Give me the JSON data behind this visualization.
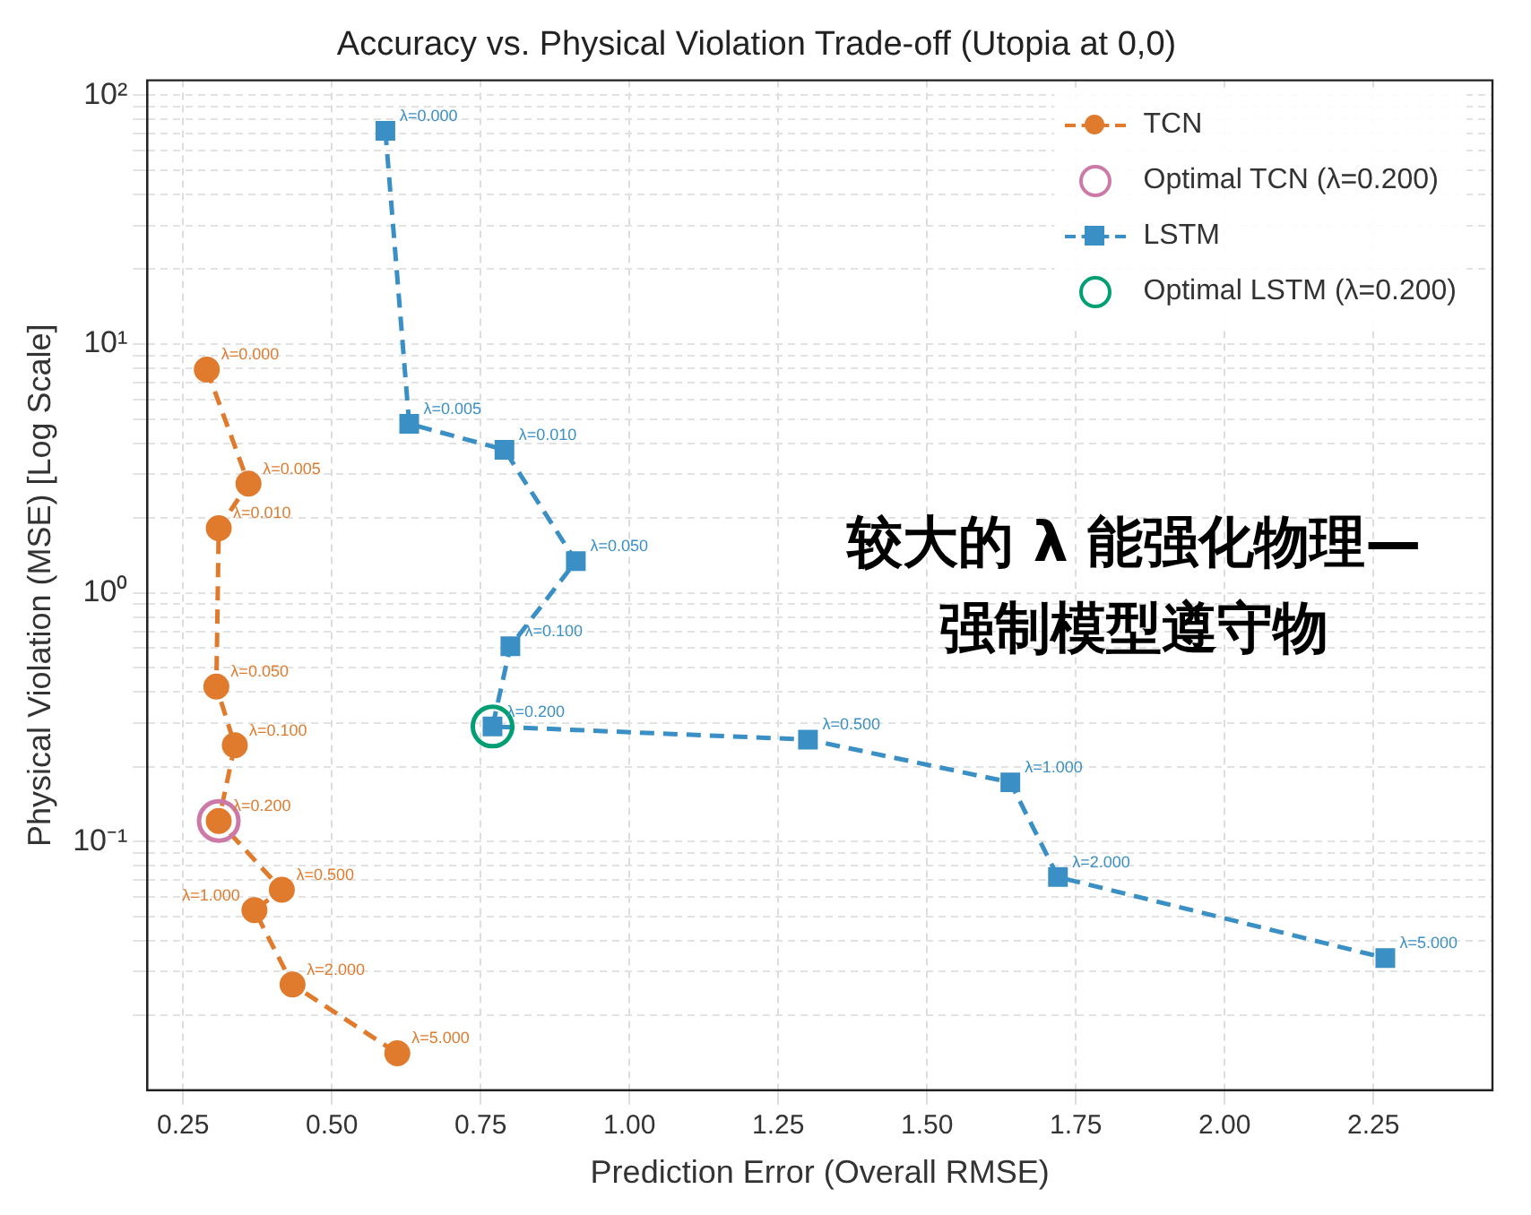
{
  "chart_data": {
    "type": "line",
    "title": "Accuracy vs. Physical Violation Trade-off (Utopia at 0,0)",
    "xlabel": "Prediction Error (Overall RMSE)",
    "ylabel": "Physical Violation (MSE) [Log Scale]",
    "series": [
      {
        "name": "TCN",
        "color": "#e07b2e",
        "marker": "circle",
        "line_style": "dashed",
        "x": [
          0.29,
          0.36,
          0.31,
          0.306,
          0.337,
          0.31,
          0.416,
          0.37,
          0.434,
          0.61
        ],
        "values": [
          7.9,
          2.75,
          1.82,
          0.42,
          0.244,
          0.121,
          0.064,
          0.053,
          0.0266,
          0.0141
        ]
      },
      {
        "name": "Optimal TCN (λ=0.200)",
        "type": "scatter",
        "color": "#cc79a7",
        "marker": "circle",
        "x": [
          0.31
        ],
        "values": [
          0.121
        ]
      },
      {
        "name": "LSTM",
        "color": "#3a8fc4",
        "marker": "square",
        "line_style": "dashed",
        "x": [
          0.59,
          0.63,
          0.79,
          0.91,
          0.8,
          0.77,
          1.3,
          1.64,
          1.72,
          2.27
        ],
        "values": [
          72,
          4.78,
          3.76,
          1.34,
          0.61,
          0.29,
          0.257,
          0.173,
          0.072,
          0.034
        ]
      },
      {
        "name": "Optimal LSTM (λ=0.200)",
        "type": "scatter",
        "color": "#009e73",
        "marker": "circle",
        "x": [
          0.77
        ],
        "values": [
          0.29
        ]
      }
    ],
    "xlim": [
      0.19,
      2.45
    ],
    "ylim": [
      0.01,
      115
    ],
    "log": "y",
    "xticks": [
      {
        "value": 0.25,
        "label": "0.25"
      },
      {
        "value": 0.5,
        "label": "0.50"
      },
      {
        "value": 0.75,
        "label": "0.75"
      },
      {
        "value": 1,
        "label": "1.00"
      },
      {
        "value": 1.25,
        "label": "1.25"
      },
      {
        "value": 1.5,
        "label": "1.50"
      },
      {
        "value": 1.75,
        "label": "1.75"
      },
      {
        "value": 2,
        "label": "2.00"
      },
      {
        "value": 2.25,
        "label": "2.25"
      }
    ],
    "yticks": [
      {
        "value": 0.02,
        "label": null
      },
      {
        "value": 0.03,
        "label": null
      },
      {
        "value": 0.04,
        "label": null
      },
      {
        "value": 0.05,
        "label": null
      },
      {
        "value": 0.06,
        "label": null
      },
      {
        "value": 0.07,
        "label": null
      },
      {
        "value": 0.08,
        "label": null
      },
      {
        "value": 0.09,
        "label": null
      },
      {
        "value": 0.1,
        "label": "10⁻¹"
      },
      {
        "value": 0.2,
        "label": null
      },
      {
        "value": 0.3,
        "label": null
      },
      {
        "value": 0.4,
        "label": null
      },
      {
        "value": 0.5,
        "label": null
      },
      {
        "value": 0.6,
        "label": null
      },
      {
        "value": 0.7,
        "label": null
      },
      {
        "value": 0.8,
        "label": null
      },
      {
        "value": 0.9,
        "label": null
      },
      {
        "value": 1,
        "label": "10⁰"
      },
      {
        "value": 2,
        "label": null
      },
      {
        "value": 3,
        "label": null
      },
      {
        "value": 4,
        "label": null
      },
      {
        "value": 5,
        "label": null
      },
      {
        "value": 6,
        "label": null
      },
      {
        "value": 7,
        "label": null
      },
      {
        "value": 8,
        "label": null
      },
      {
        "value": 9,
        "label": null
      },
      {
        "value": 10,
        "label": "10¹"
      },
      {
        "value": 20,
        "label": null
      },
      {
        "value": 30,
        "label": null
      },
      {
        "value": 40,
        "label": null
      },
      {
        "value": 50,
        "label": null
      },
      {
        "value": 60,
        "label": null
      },
      {
        "value": 70,
        "label": null
      },
      {
        "value": 80,
        "label": null
      },
      {
        "value": 90,
        "label": null
      },
      {
        "value": 100,
        "label": "10²"
      }
    ],
    "grid": true,
    "legend": "top right",
    "annotations": [
      {
        "text": "λ=0.000",
        "x": 0.29,
        "y": 7.9
      },
      {
        "text": "λ=0.005",
        "x": 0.36,
        "y": 2.75
      },
      {
        "text": "λ=0.010",
        "x": 0.31,
        "y": 1.82
      },
      {
        "text": "λ=0.050",
        "x": 0.306,
        "y": 0.42
      },
      {
        "text": "λ=0.100",
        "x": 0.337,
        "y": 0.244
      },
      {
        "text": "λ=0.200",
        "x": 0.31,
        "y": 0.121
      },
      {
        "text": "λ=0.500",
        "x": 0.416,
        "y": 0.064
      },
      {
        "text": "λ=1.000",
        "x": 0.37,
        "y": 0.053
      },
      {
        "text": "λ=2.000",
        "x": 0.434,
        "y": 0.0266
      },
      {
        "text": "λ=5.000",
        "x": 0.61,
        "y": 0.0141
      },
      {
        "text": "λ=0.000",
        "x": 0.59,
        "y": 72
      },
      {
        "text": "λ=0.005",
        "x": 0.63,
        "y": 4.78
      },
      {
        "text": "λ=0.010",
        "x": 0.79,
        "y": 3.76
      },
      {
        "text": "λ=0.050",
        "x": 0.91,
        "y": 1.34
      },
      {
        "text": "λ=0.100",
        "x": 0.8,
        "y": 0.61
      },
      {
        "text": "λ=0.200",
        "x": 0.77,
        "y": 0.29
      },
      {
        "text": "λ=0.500",
        "x": 1.3,
        "y": 0.257
      },
      {
        "text": "λ=1.000",
        "x": 1.64,
        "y": 0.173
      },
      {
        "text": "λ=2.000",
        "x": 1.72,
        "y": 0.072
      },
      {
        "text": "λ=5.000",
        "x": 2.27,
        "y": 0.034
      },
      "较大的 λ 能强化物理—",
      "强制模型遵守物"
    ]
  }
}
